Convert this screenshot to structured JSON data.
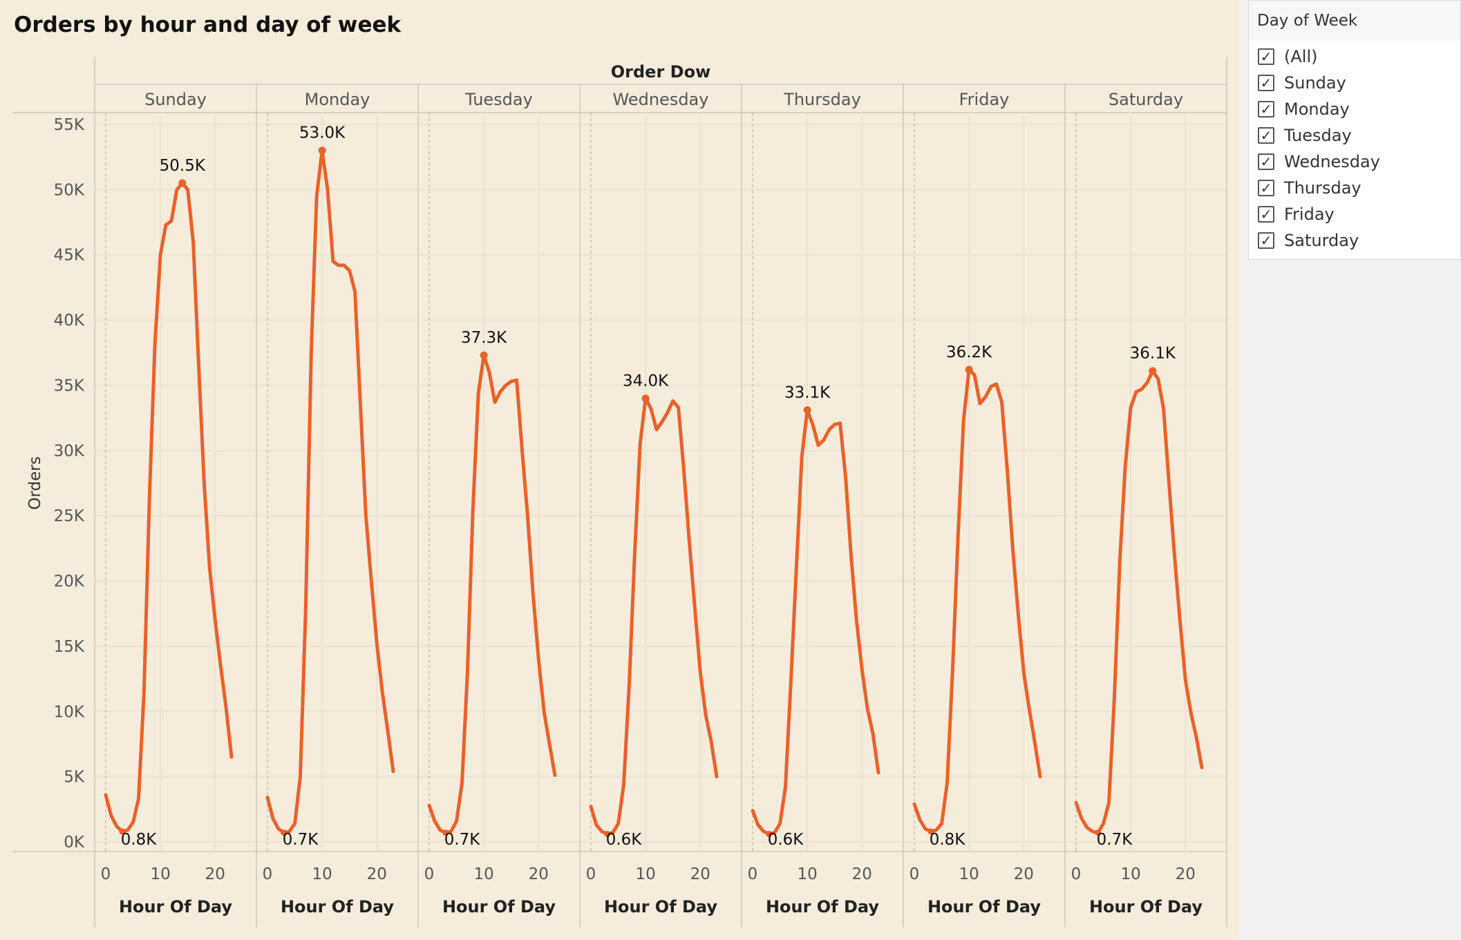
{
  "dashboard": {
    "title": "Orders by hour and day of week"
  },
  "filter": {
    "title": "Day of Week",
    "items": [
      {
        "label": "(All)",
        "checked": true
      },
      {
        "label": "Sunday",
        "checked": true
      },
      {
        "label": "Monday",
        "checked": true
      },
      {
        "label": "Tuesday",
        "checked": true
      },
      {
        "label": "Wednesday",
        "checked": true
      },
      {
        "label": "Thursday",
        "checked": true
      },
      {
        "label": "Friday",
        "checked": true
      },
      {
        "label": "Saturday",
        "checked": true
      }
    ]
  },
  "colors": {
    "line": "#e8622a",
    "background": "#f5ecdc",
    "grid": "#ece2d1",
    "divider": "#cfc6b8"
  },
  "chart_data": {
    "type": "line",
    "title": "Orders by hour and day of week",
    "column_header": "Order Dow",
    "xlabel": "Hour Of Day",
    "ylabel": "Orders",
    "xlim": [
      0,
      23
    ],
    "ylim": [
      0,
      55000
    ],
    "x_ticks": [
      0,
      10,
      20
    ],
    "x_tick_labels": [
      "0",
      "10",
      "20"
    ],
    "y_ticks": [
      0,
      5000,
      10000,
      15000,
      20000,
      25000,
      30000,
      35000,
      40000,
      45000,
      50000,
      55000
    ],
    "y_tick_labels": [
      "0K",
      "5K",
      "10K",
      "15K",
      "20K",
      "25K",
      "30K",
      "35K",
      "40K",
      "45K",
      "50K",
      "55K"
    ],
    "grid": true,
    "x": [
      0,
      1,
      2,
      3,
      4,
      5,
      6,
      7,
      8,
      9,
      10,
      11,
      12,
      13,
      14,
      15,
      16,
      17,
      18,
      19,
      20,
      21,
      22,
      23
    ],
    "series": [
      {
        "day": "Sunday",
        "values": [
          3600,
          2000,
          1200,
          800,
          900,
          1500,
          3300,
          11500,
          26500,
          38200,
          45000,
          47300,
          47600,
          50000,
          50500,
          50000,
          46000,
          36500,
          27500,
          21000,
          17000,
          13500,
          10300,
          6500
        ],
        "max": {
          "hour": 14,
          "label": "50.5K"
        },
        "min": {
          "hour": 3,
          "label": "0.8K"
        }
      },
      {
        "day": "Monday",
        "values": [
          3400,
          1800,
          1000,
          700,
          800,
          1400,
          5000,
          18000,
          37500,
          49500,
          53000,
          50000,
          44500,
          44200,
          44200,
          43800,
          42200,
          33500,
          25000,
          20000,
          15200,
          11500,
          8500,
          5400
        ],
        "max": {
          "hour": 10,
          "label": "53.0K"
        },
        "min": {
          "hour": 3,
          "label": "0.7K"
        }
      },
      {
        "day": "Tuesday",
        "values": [
          2800,
          1600,
          900,
          700,
          800,
          1600,
          4500,
          13000,
          25500,
          34400,
          37300,
          36000,
          33700,
          34500,
          35000,
          35300,
          35400,
          30000,
          25000,
          19000,
          14000,
          10000,
          7500,
          5100
        ],
        "max": {
          "hour": 10,
          "label": "37.3K"
        },
        "min": {
          "hour": 3,
          "label": "0.7K"
        }
      },
      {
        "day": "Wednesday",
        "values": [
          2700,
          1300,
          800,
          600,
          700,
          1400,
          4400,
          12000,
          22000,
          30500,
          34000,
          33200,
          31600,
          32200,
          32900,
          33800,
          33300,
          28500,
          23000,
          18000,
          13000,
          9700,
          7700,
          5000
        ],
        "max": {
          "hour": 10,
          "label": "34.0K"
        },
        "min": {
          "hour": 3,
          "label": "0.6K"
        }
      },
      {
        "day": "Thursday",
        "values": [
          2400,
          1300,
          800,
          600,
          700,
          1400,
          4200,
          12300,
          21000,
          29500,
          33100,
          32000,
          30400,
          30800,
          31600,
          32000,
          32100,
          28000,
          22000,
          17000,
          13200,
          10200,
          8300,
          5300
        ],
        "max": {
          "hour": 10,
          "label": "33.1K"
        },
        "min": {
          "hour": 3,
          "label": "0.6K"
        }
      },
      {
        "day": "Friday",
        "values": [
          2900,
          1700,
          1000,
          800,
          900,
          1400,
          4500,
          13200,
          23500,
          32300,
          36200,
          35800,
          33600,
          34100,
          34900,
          35100,
          33700,
          28500,
          22500,
          17500,
          13000,
          10200,
          7700,
          5000
        ],
        "max": {
          "hour": 10,
          "label": "36.2K"
        },
        "min": {
          "hour": 3,
          "label": "0.8K"
        }
      },
      {
        "day": "Saturday",
        "values": [
          3000,
          1800,
          1100,
          800,
          700,
          1400,
          3000,
          11000,
          21500,
          28800,
          33300,
          34500,
          34700,
          35200,
          36100,
          35500,
          33200,
          27500,
          22000,
          17000,
          12400,
          9900,
          8000,
          5700
        ],
        "max": {
          "hour": 14,
          "label": "36.1K"
        },
        "min": {
          "hour": 4,
          "label": "0.7K"
        }
      }
    ]
  }
}
